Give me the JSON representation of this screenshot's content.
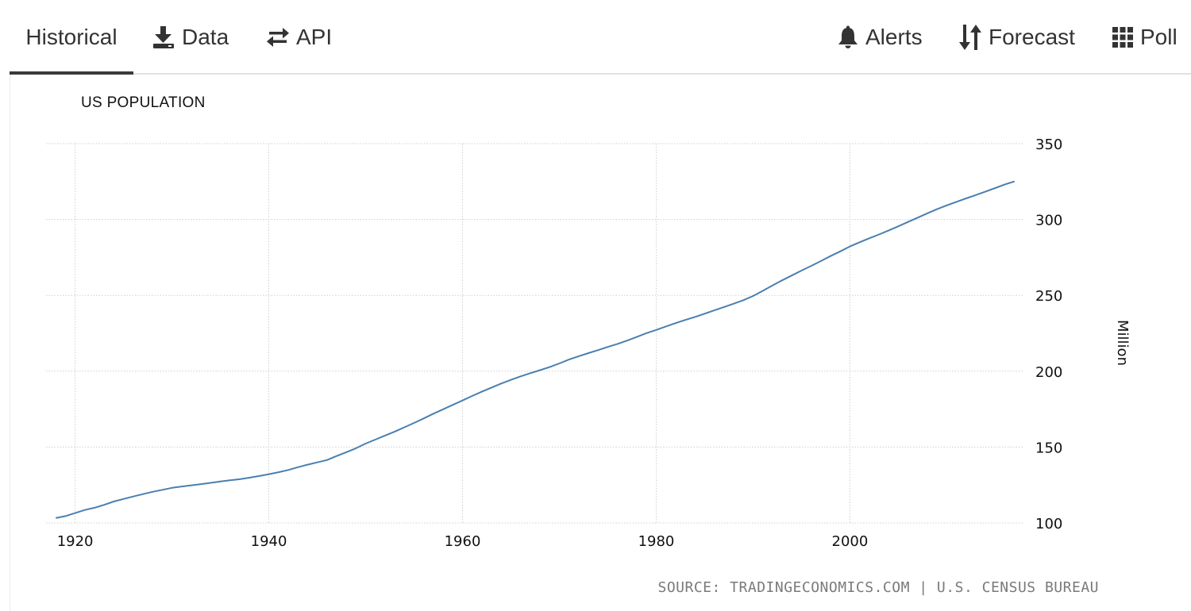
{
  "tabs": {
    "historical": "Historical",
    "data": "Data",
    "api": "API",
    "alerts": "Alerts",
    "forecast": "Forecast",
    "poll": "Poll"
  },
  "icons": {
    "data": "download-icon",
    "api": "swap-arrows-icon",
    "alerts": "bell-icon",
    "forecast": "sort-arrows-icon",
    "poll": "grid-icon"
  },
  "colors": {
    "line": "#4a7fb0",
    "grid": "#cfcfcf",
    "source": "#7a7a7a"
  },
  "source_text": "SOURCE: TRADINGECONOMICS.COM | U.S. CENSUS BUREAU",
  "chart_data": {
    "type": "line",
    "title": "US POPULATION",
    "xlabel": "",
    "ylabel": "Million",
    "xlim": [
      1917,
      2018
    ],
    "ylim": [
      100,
      350
    ],
    "xticks": [
      1920,
      1940,
      1960,
      1980,
      2000
    ],
    "yticks": [
      100,
      150,
      200,
      250,
      300,
      350
    ],
    "grid": true,
    "series": [
      {
        "name": "US Population",
        "x": [
          1918,
          1919,
          1920,
          1921,
          1922,
          1923,
          1924,
          1925,
          1926,
          1927,
          1928,
          1929,
          1930,
          1931,
          1932,
          1933,
          1934,
          1935,
          1936,
          1937,
          1938,
          1939,
          1940,
          1941,
          1942,
          1943,
          1944,
          1945,
          1946,
          1947,
          1948,
          1949,
          1950,
          1951,
          1952,
          1953,
          1954,
          1955,
          1956,
          1957,
          1958,
          1959,
          1960,
          1961,
          1962,
          1963,
          1964,
          1965,
          1966,
          1967,
          1968,
          1969,
          1970,
          1971,
          1972,
          1973,
          1974,
          1975,
          1976,
          1977,
          1978,
          1979,
          1980,
          1981,
          1982,
          1983,
          1984,
          1985,
          1986,
          1987,
          1988,
          1989,
          1990,
          1991,
          1992,
          1993,
          1994,
          1995,
          1996,
          1997,
          1998,
          1999,
          2000,
          2001,
          2002,
          2003,
          2004,
          2005,
          2006,
          2007,
          2008,
          2009,
          2010,
          2011,
          2012,
          2013,
          2014,
          2015,
          2016,
          2017
        ],
        "values": [
          103.2,
          104.5,
          106.5,
          108.5,
          110.0,
          111.9,
          114.1,
          115.8,
          117.4,
          119.0,
          120.5,
          121.8,
          123.1,
          124.0,
          124.8,
          125.6,
          126.4,
          127.3,
          128.1,
          128.8,
          129.8,
          130.9,
          132.1,
          133.4,
          134.9,
          136.7,
          138.4,
          139.9,
          141.4,
          144.1,
          146.6,
          149.2,
          152.3,
          154.9,
          157.6,
          160.2,
          163.0,
          165.9,
          168.9,
          172.0,
          174.9,
          177.8,
          180.7,
          183.7,
          186.5,
          189.2,
          191.9,
          194.3,
          196.6,
          198.7,
          200.7,
          202.7,
          205.1,
          207.7,
          209.9,
          211.9,
          213.9,
          216.0,
          218.0,
          220.2,
          222.6,
          225.1,
          227.2,
          229.5,
          231.7,
          233.8,
          235.8,
          237.9,
          240.1,
          242.3,
          244.5,
          246.8,
          249.6,
          253.0,
          256.5,
          259.9,
          263.1,
          266.3,
          269.4,
          272.6,
          275.9,
          279.0,
          282.2,
          285.0,
          287.6,
          290.1,
          292.8,
          295.5,
          298.4,
          301.2,
          304.1,
          306.8,
          309.3,
          311.6,
          313.9,
          316.1,
          318.4,
          320.7,
          323.1,
          325.1
        ]
      }
    ]
  }
}
